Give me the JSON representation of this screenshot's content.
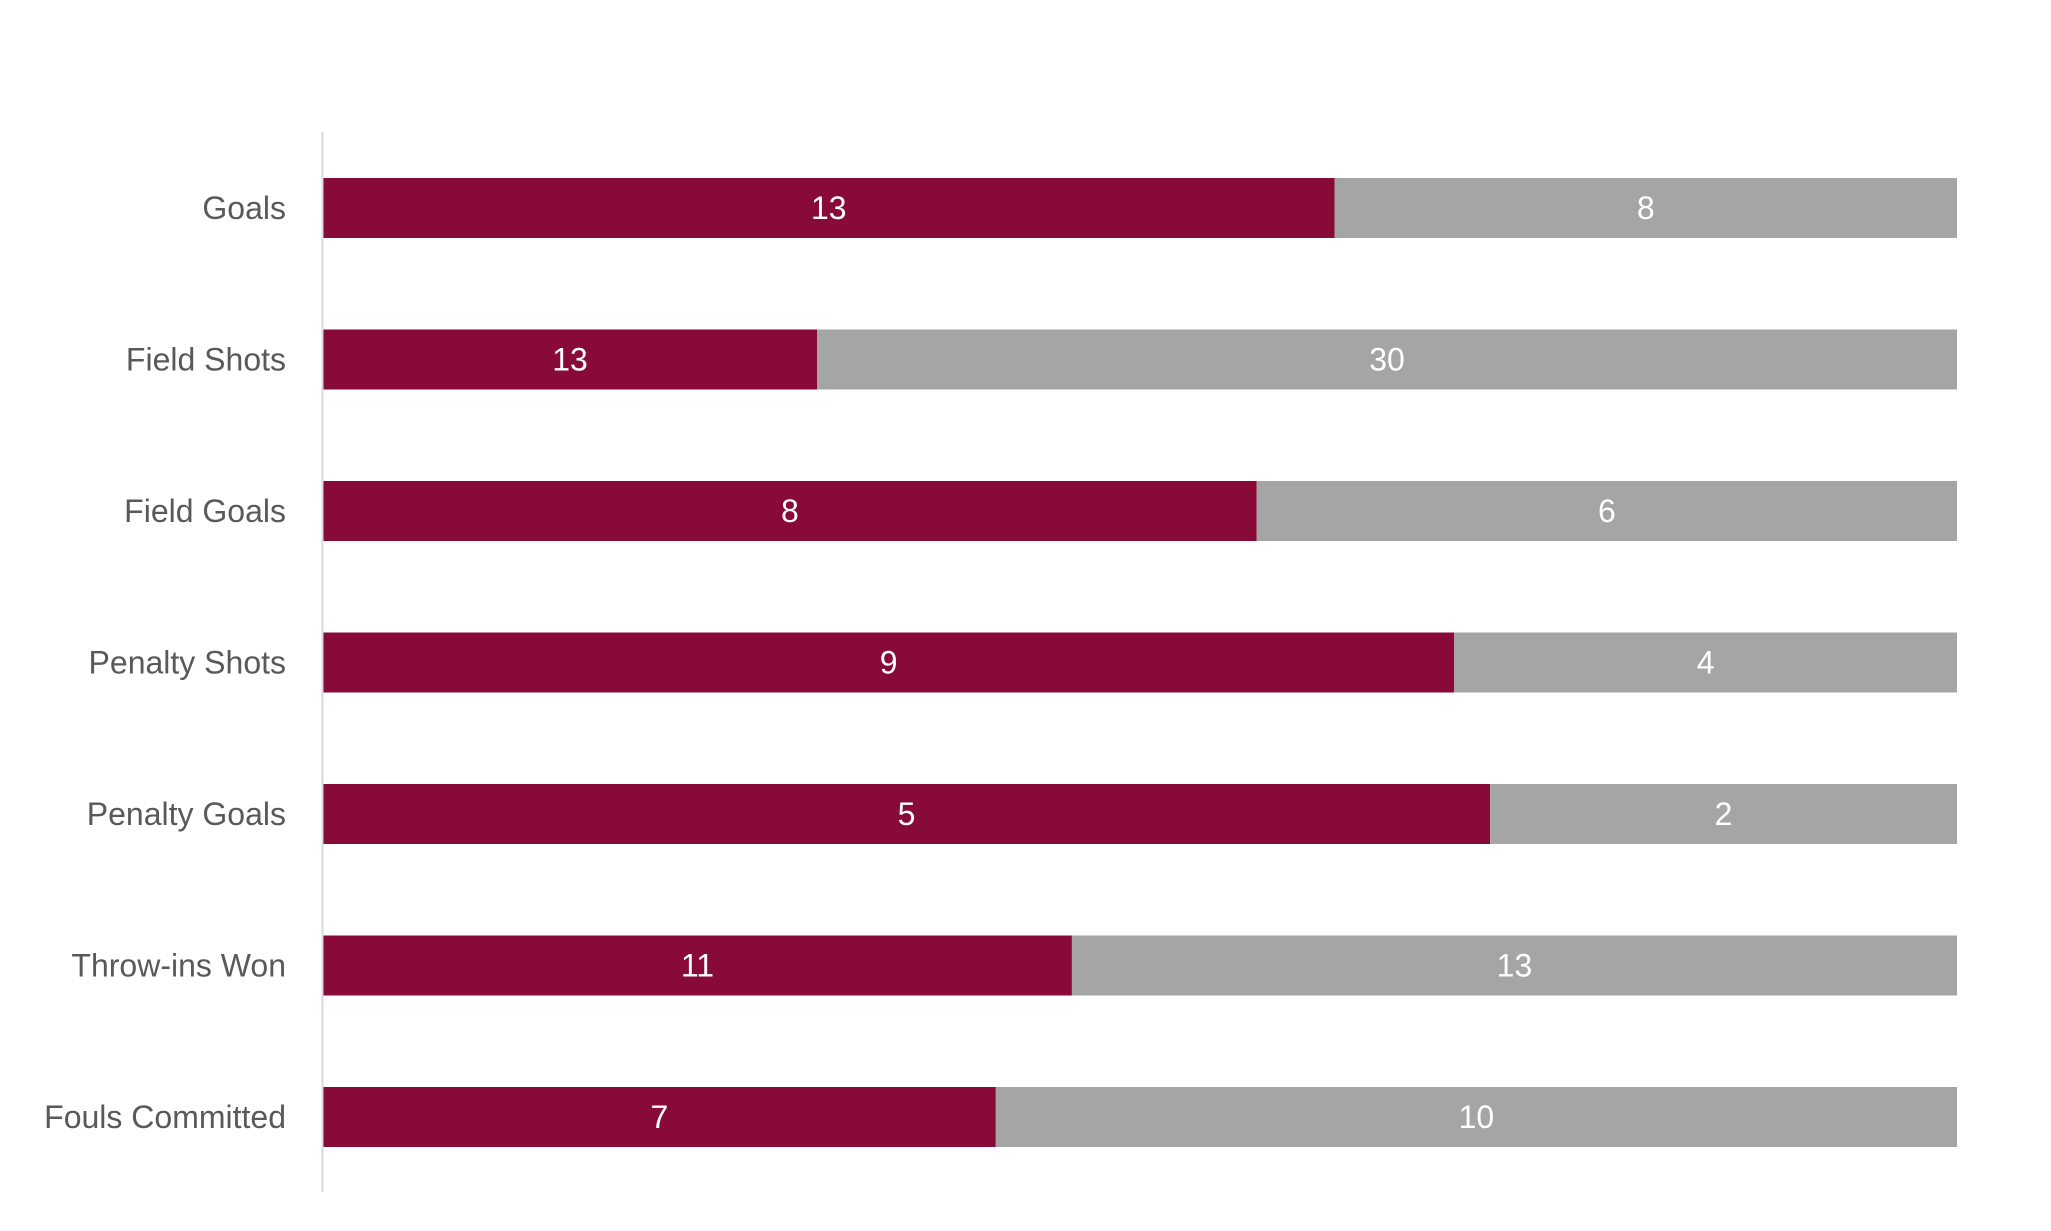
{
  "chart_data": {
    "type": "bar",
    "orientation": "horizontal",
    "stacking": "percent",
    "categories": [
      "Goals",
      "Field Shots",
      "Field Goals",
      "Penalty Shots",
      "Penalty Goals",
      "Throw-ins Won",
      "Fouls Committed"
    ],
    "series": [
      {
        "values": [
          13,
          13,
          8,
          9,
          5,
          11,
          7
        ],
        "color": "#870A38"
      },
      {
        "values": [
          8,
          30,
          6,
          4,
          2,
          13,
          10
        ],
        "color": "#A5A5A5"
      }
    ],
    "title": "",
    "xlabel": "",
    "ylabel": "",
    "xlim": [
      0,
      100
    ],
    "grid": false,
    "legend": "none",
    "data_labels": true
  },
  "colors": {
    "axis_line": "#D9D9D9",
    "category_text": "#595959",
    "data_label_text": "#FFFFFF",
    "background": "#FFFFFF"
  }
}
